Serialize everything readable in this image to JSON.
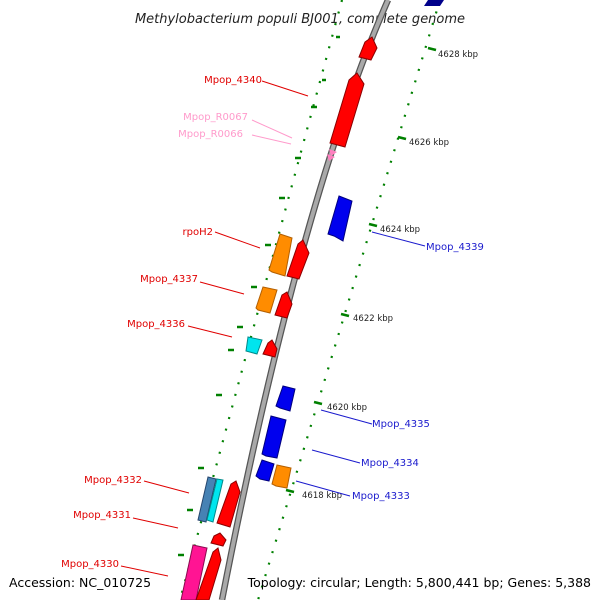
{
  "title": "Methylobacterium populi BJ001, complete genome",
  "footer": {
    "accession": "Accession: NC_010725",
    "summary": "Topology: circular; Length: 5,800,441 bp; Genes: 5,388"
  },
  "colors": {
    "forward_gene": "#ff0000",
    "reverse_gene": "#0000ff",
    "rna": "#ff7fbf",
    "orange_gene": "#ff8c00",
    "cyan_gene": "#00e5ee",
    "steelblue_gene": "#4682b4",
    "magenta_gene": "#ff1493",
    "tick_green": "#008000",
    "backbone": "#999999"
  },
  "kbp_ticks": [
    "4628 kbp",
    "4626 kbp",
    "4624 kbp",
    "4622 kbp",
    "4620 kbp",
    "4618 kbp"
  ],
  "gene_labels": {
    "mpop_4340": "Mpop_4340",
    "mpop_r0067": "Mpop_R0067",
    "mpop_r0066": "Mpop_R0066",
    "rpoh2": "rpoH2",
    "mpop_4337": "Mpop_4337",
    "mpop_4336": "Mpop_4336",
    "mpop_4332": "Mpop_4332",
    "mpop_4331": "Mpop_4331",
    "mpop_4330": "Mpop_4330",
    "mpop_4339": "Mpop_4339",
    "mpop_4335": "Mpop_4335",
    "mpop_4334": "Mpop_4334",
    "mpop_4333": "Mpop_4333"
  }
}
